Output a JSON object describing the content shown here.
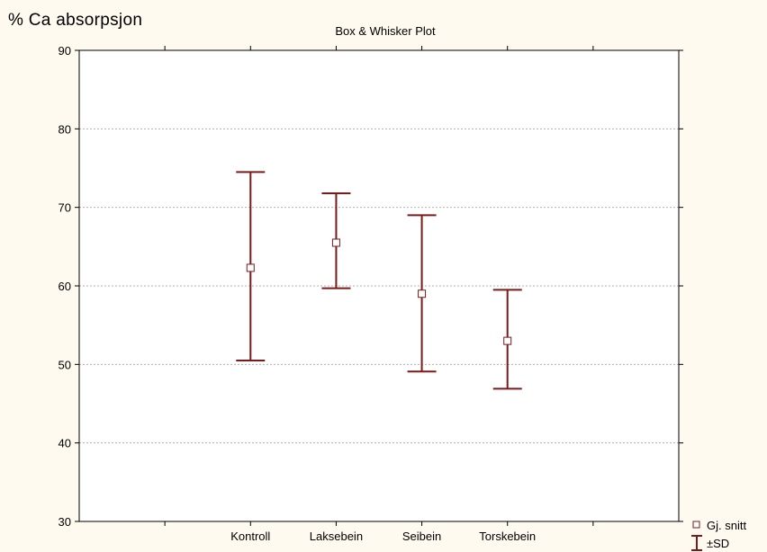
{
  "chart_data": {
    "type": "box",
    "title": "Box & Whisker Plot",
    "ylabel": "% Ca absorpsjon",
    "xlabel": "",
    "ylim": [
      30,
      90
    ],
    "yticks": [
      30,
      40,
      50,
      60,
      70,
      80,
      90
    ],
    "categories": [
      "Kontroll",
      "Laksebein",
      "Seibein",
      "Torskebein"
    ],
    "mean": [
      62.3,
      65.5,
      59.0,
      53.0
    ],
    "sd_upper": [
      74.5,
      71.8,
      69.0,
      59.5
    ],
    "sd_lower": [
      50.5,
      59.7,
      49.1,
      46.9
    ],
    "grid": true,
    "legend": {
      "position": "bottom-right",
      "mean_label": "Gj. snitt",
      "sd_label": "±SD"
    },
    "colors": {
      "series": "#7a1a1a",
      "grid": "#b0b0b0",
      "background": "#fefaf0",
      "plot_background": "#ffffff"
    }
  }
}
